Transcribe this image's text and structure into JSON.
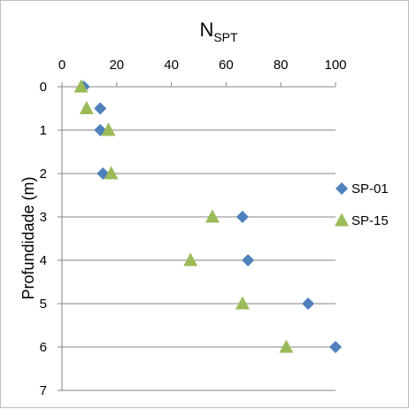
{
  "chart_data": {
    "type": "scatter",
    "title": "",
    "x_axis": {
      "label_main": "N",
      "label_sub": "SPT",
      "position": "top",
      "min": 0,
      "max": 100,
      "ticks": [
        0,
        20,
        40,
        60,
        80,
        100
      ]
    },
    "y_axis": {
      "label": "Profundidade (m)",
      "reversed": true,
      "min": 0,
      "max": 7,
      "ticks": [
        0,
        1,
        2,
        3,
        4,
        5,
        6,
        7
      ]
    },
    "grid": "horizontal",
    "legend_position": "right",
    "series": [
      {
        "name": "SP-01",
        "marker": "diamond",
        "color": "#4f81bd",
        "points": [
          {
            "x": 8,
            "y": 0
          },
          {
            "x": 14,
            "y": 0.5
          },
          {
            "x": 14,
            "y": 1
          },
          {
            "x": 15,
            "y": 2
          },
          {
            "x": 66,
            "y": 3
          },
          {
            "x": 68,
            "y": 4
          },
          {
            "x": 90,
            "y": 5
          },
          {
            "x": 100,
            "y": 6
          }
        ]
      },
      {
        "name": "SP-15",
        "marker": "triangle",
        "color": "#9bbb59",
        "points": [
          {
            "x": 7,
            "y": 0
          },
          {
            "x": 9,
            "y": 0.5
          },
          {
            "x": 17,
            "y": 1
          },
          {
            "x": 18,
            "y": 2
          },
          {
            "x": 55,
            "y": 3
          },
          {
            "x": 47,
            "y": 4
          },
          {
            "x": 66,
            "y": 5
          },
          {
            "x": 82,
            "y": 6
          }
        ]
      }
    ]
  }
}
